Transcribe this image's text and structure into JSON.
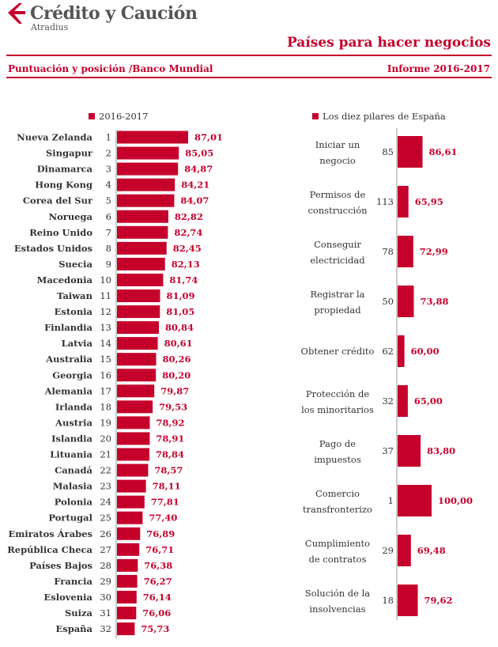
{
  "header": {
    "brand": "Crédito y Caución",
    "brand_sub": "Atradius",
    "title": "Países para hacer negocios",
    "subtitle_left": "Puntuación y posición /Banco Mundial",
    "subtitle_right": "Informe 2016-2017"
  },
  "colors": {
    "accent": "#c5002b",
    "text": "#333333"
  },
  "chart_data": [
    {
      "type": "bar",
      "orientation": "horizontal",
      "legend": "2016-2017",
      "legend_position": "top",
      "grid": false,
      "xlim": [
        72,
        88
      ],
      "categories": [
        "Nueva Zelanda",
        "Singapur",
        "Dinamarca",
        "Hong Kong",
        "Corea del Sur",
        "Noruega",
        "Reino Unido",
        "Estados Unidos",
        "Suecia",
        "Macedonia",
        "Taiwan",
        "Estonia",
        "Finlandia",
        "Latvia",
        "Australia",
        "Georgia",
        "Alemania",
        "Irlanda",
        "Austria",
        "Islandia",
        "Lituania",
        "Canadá",
        "Malasia",
        "Polonia",
        "Portugal",
        "Emiratos Árabes",
        "República Checa",
        "Países Bajos",
        "Francia",
        "Eslovenia",
        "Suiza",
        "España"
      ],
      "ranks": [
        "1",
        "2",
        "3",
        "4",
        "5",
        "6",
        "7",
        "8",
        "9",
        "10",
        "11",
        "12",
        "13",
        "14",
        "15",
        "16",
        "17",
        "18",
        "19",
        "20",
        "21",
        "22",
        "23",
        "24",
        "25",
        "26",
        "27",
        "28",
        "29",
        "30",
        "31",
        "32"
      ],
      "values": [
        87.01,
        85.05,
        84.87,
        84.21,
        84.07,
        82.82,
        82.74,
        82.45,
        82.13,
        81.74,
        81.09,
        81.05,
        80.84,
        80.61,
        80.26,
        80.2,
        79.87,
        79.53,
        78.92,
        78.91,
        78.84,
        78.57,
        78.11,
        77.81,
        77.4,
        76.89,
        76.71,
        76.38,
        76.27,
        76.14,
        76.06,
        75.73
      ],
      "value_labels": [
        "87,01",
        "85,05",
        "84,87",
        "84,21",
        "84,07",
        "82,82",
        "82,74",
        "82,45",
        "82,13",
        "81,74",
        "81,09",
        "81,05",
        "80,84",
        "80,61",
        "80,26",
        "80,20",
        "79,87",
        "79,53",
        "78,92",
        "78,91",
        "78,84",
        "78,57",
        "78,11",
        "77,81",
        "77,40",
        "76,89",
        "76,71",
        "76,38",
        "76,27",
        "76,14",
        "76,06",
        "75,73"
      ]
    },
    {
      "type": "bar",
      "orientation": "horizontal",
      "legend": "Los diez pilares de España",
      "legend_position": "top",
      "grid": false,
      "xlim": [
        50,
        100
      ],
      "categories": [
        [
          "Iniciar un",
          "negocio"
        ],
        [
          "Permisos de",
          "construcción"
        ],
        [
          "Conseguir",
          "electricidad"
        ],
        [
          "Registrar la",
          "propiedad"
        ],
        [
          "Obtener crédito"
        ],
        [
          "Protección de",
          "los minoritarios"
        ],
        [
          "Pago de",
          "impuestos"
        ],
        [
          "Comercio",
          "transfronterizo"
        ],
        [
          "Cumplimiento",
          "de contratos"
        ],
        [
          "Solución de la",
          "insolvencias"
        ]
      ],
      "ranks": [
        "85",
        "113",
        "78",
        "50",
        "62",
        "32",
        "37",
        "1",
        "29",
        "18"
      ],
      "values": [
        86.61,
        65.95,
        72.99,
        73.88,
        60.0,
        65.0,
        83.8,
        100.0,
        69.48,
        79.62
      ],
      "value_labels": [
        "86,61",
        "65,95",
        "72,99",
        "73,88",
        "60,00",
        "65,00",
        "83,80",
        "100,00",
        "69,48",
        "79,62"
      ]
    }
  ]
}
